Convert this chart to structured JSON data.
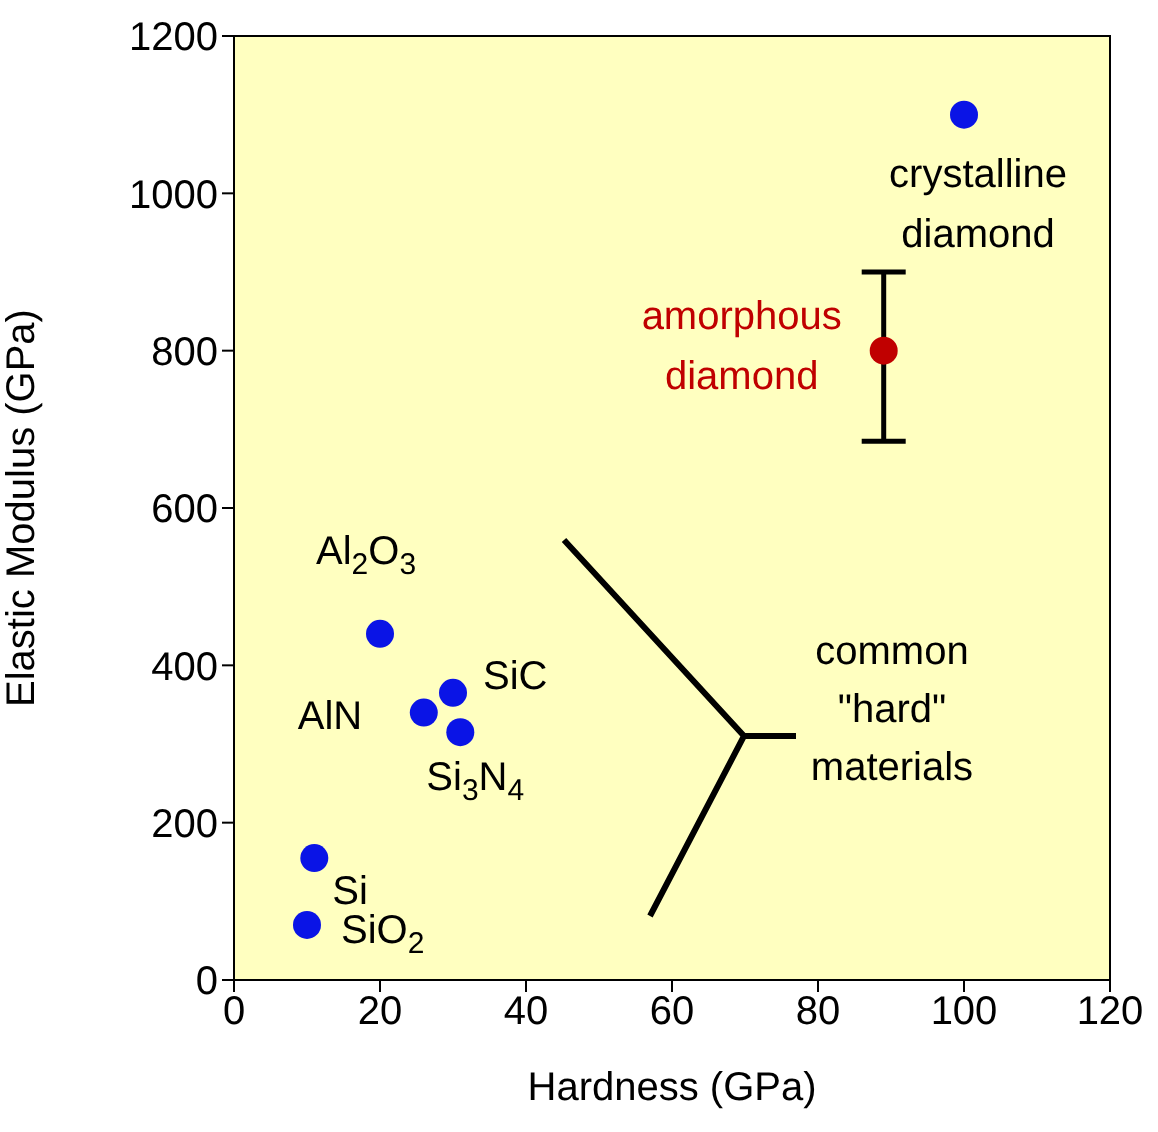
{
  "chart_data": {
    "type": "scatter",
    "xlabel": "Hardness (GPa)",
    "ylabel": "Elastic Modulus (GPa)",
    "xlim": [
      0,
      120
    ],
    "xticks": [
      0,
      20,
      40,
      60,
      80,
      100,
      120
    ],
    "ylim": [
      0,
      1200
    ],
    "yticks": [
      0,
      200,
      400,
      600,
      800,
      1000,
      1200
    ],
    "grid": false,
    "marker": "circle",
    "series": [
      {
        "color": "#0a14e6",
        "x": [
          100,
          20,
          26,
          30,
          31,
          11,
          10
        ],
        "values": [
          1100,
          440,
          340,
          365,
          315,
          155,
          70
        ]
      },
      {
        "color": "#c00000",
        "x": [
          89
        ],
        "values": [
          800
        ],
        "errors": [
          [
            685,
            900
          ]
        ]
      }
    ],
    "annotations": [
      {
        "text": "crystalline\ndiamond",
        "x": 100,
        "y": 1100
      },
      {
        "text": "amorphous\ndiamond",
        "x": 89,
        "y": 800
      },
      {
        "text": "Al$_{2}$O$_{3}$",
        "x": 20,
        "y": 440
      },
      {
        "text": "AlN",
        "x": 26,
        "y": 340
      },
      {
        "text": "SiC",
        "x": 30,
        "y": 365
      },
      {
        "text": "Si$_{3}$N$_{4}$",
        "x": 31,
        "y": 315
      },
      {
        "text": "Si",
        "x": 11,
        "y": 155
      },
      {
        "text": "SiO$_{2}$",
        "x": 10,
        "y": 70
      },
      "common\n\"hard\"\nmaterials"
    ]
  }
}
